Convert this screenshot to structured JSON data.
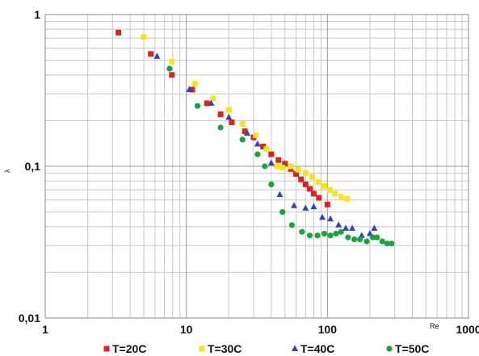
{
  "chart_data": {
    "type": "scatter",
    "title": "",
    "xlabel": "Re",
    "ylabel": "λ",
    "x_scale": "log",
    "y_scale": "log",
    "xlim": [
      1,
      1000
    ],
    "ylim": [
      0.01,
      1
    ],
    "x_ticks": [
      {
        "value": 1,
        "label": "1"
      },
      {
        "value": 10,
        "label": "10"
      },
      {
        "value": 100,
        "label": "100"
      },
      {
        "value": 1000,
        "label": "1000"
      }
    ],
    "y_ticks": [
      {
        "value": 1,
        "label": "1"
      },
      {
        "value": 0.1,
        "label": "0,1"
      },
      {
        "value": 0.01,
        "label": "0,01"
      }
    ],
    "grid": true,
    "legend_position": "bottom",
    "series": [
      {
        "name": "T=20C",
        "marker": "square",
        "color": "#e0211e",
        "points": [
          [
            3.3,
            0.76
          ],
          [
            5.6,
            0.55
          ],
          [
            7.9,
            0.4
          ],
          [
            11,
            0.32
          ],
          [
            14,
            0.26
          ],
          [
            17.5,
            0.22
          ],
          [
            21,
            0.195
          ],
          [
            26,
            0.17
          ],
          [
            30,
            0.155
          ],
          [
            35,
            0.135
          ],
          [
            40,
            0.12
          ],
          [
            45,
            0.11
          ],
          [
            50,
            0.104
          ],
          [
            55,
            0.096
          ],
          [
            60,
            0.089
          ],
          [
            65,
            0.082
          ],
          [
            70,
            0.076
          ],
          [
            75,
            0.071
          ],
          [
            80,
            0.066
          ],
          [
            87,
            0.062
          ],
          [
            100,
            0.056
          ]
        ]
      },
      {
        "name": "T=30C",
        "marker": "square",
        "color": "#f5e61b",
        "points": [
          [
            5.0,
            0.71
          ],
          [
            7.9,
            0.49
          ],
          [
            11.5,
            0.35
          ],
          [
            15.5,
            0.28
          ],
          [
            20,
            0.235
          ],
          [
            25,
            0.19
          ],
          [
            31,
            0.16
          ],
          [
            37,
            0.13
          ],
          [
            44,
            0.1
          ],
          [
            48,
            0.098
          ],
          [
            55,
            0.1
          ],
          [
            62,
            0.095
          ],
          [
            70,
            0.09
          ],
          [
            78,
            0.085
          ],
          [
            86,
            0.079
          ],
          [
            95,
            0.074
          ],
          [
            104,
            0.07
          ],
          [
            113,
            0.066
          ],
          [
            125,
            0.063
          ],
          [
            138,
            0.061
          ]
        ]
      },
      {
        "name": "T=40C",
        "marker": "triangle",
        "color": "#3341c9",
        "points": [
          [
            6.2,
            0.53
          ],
          [
            10.5,
            0.32
          ],
          [
            15,
            0.26
          ],
          [
            20,
            0.21
          ],
          [
            27,
            0.165
          ],
          [
            32,
            0.14
          ],
          [
            40,
            0.105
          ],
          [
            46,
            0.065
          ],
          [
            58,
            0.055
          ],
          [
            70,
            0.053
          ],
          [
            80,
            0.054
          ],
          [
            92,
            0.046
          ],
          [
            105,
            0.045
          ],
          [
            120,
            0.041
          ],
          [
            135,
            0.039
          ],
          [
            150,
            0.039
          ],
          [
            175,
            0.035
          ],
          [
            200,
            0.036
          ],
          [
            215,
            0.039
          ]
        ]
      },
      {
        "name": "T=50C",
        "marker": "circle",
        "color": "#1aa53b",
        "points": [
          [
            7.6,
            0.44
          ],
          [
            12,
            0.25
          ],
          [
            17.5,
            0.18
          ],
          [
            25,
            0.15
          ],
          [
            32,
            0.12
          ],
          [
            36,
            0.1
          ],
          [
            40,
            0.076
          ],
          [
            48,
            0.05
          ],
          [
            56,
            0.041
          ],
          [
            66,
            0.037
          ],
          [
            75,
            0.035
          ],
          [
            85,
            0.035
          ],
          [
            95,
            0.036
          ],
          [
            105,
            0.035
          ],
          [
            115,
            0.036
          ],
          [
            125,
            0.037
          ],
          [
            140,
            0.034
          ],
          [
            155,
            0.033
          ],
          [
            170,
            0.033
          ],
          [
            190,
            0.032
          ],
          [
            210,
            0.034
          ],
          [
            225,
            0.034
          ],
          [
            245,
            0.032
          ],
          [
            265,
            0.031
          ],
          [
            285,
            0.031
          ]
        ]
      }
    ]
  }
}
